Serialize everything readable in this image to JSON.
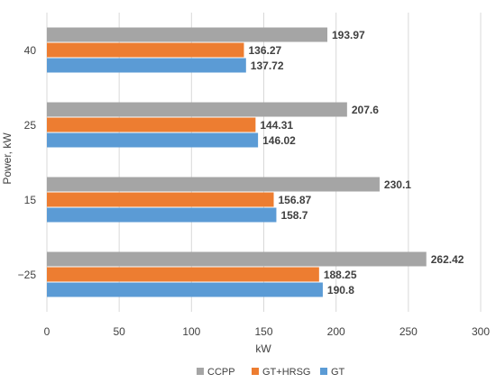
{
  "chart_data": {
    "type": "bar",
    "orientation": "horizontal",
    "categories": [
      "40",
      "25",
      "15",
      "−25"
    ],
    "series": [
      {
        "name": "CCPP",
        "color": "#A5A5A5",
        "values": [
          193.97,
          207.6,
          230.1,
          262.42
        ],
        "labels": [
          "193.97",
          "207.6",
          "230.1",
          "262.42"
        ]
      },
      {
        "name": "GT+HRSG",
        "color": "#ED7D31",
        "values": [
          136.27,
          144.31,
          156.87,
          188.25
        ],
        "labels": [
          "136.27",
          "144.31",
          "156.87",
          "188.25"
        ]
      },
      {
        "name": "GT",
        "color": "#5B9BD5",
        "values": [
          137.72,
          146.02,
          158.7,
          190.8
        ],
        "labels": [
          "137.72",
          "146.02",
          "158.7",
          "190.8"
        ]
      }
    ],
    "xlabel": "kW",
    "ylabel": "Power, kW",
    "xlim": [
      0,
      300
    ],
    "xticks": [
      "0",
      "50",
      "100",
      "150",
      "200",
      "250",
      "300"
    ],
    "grid": "vertical",
    "legend": "bottom"
  }
}
